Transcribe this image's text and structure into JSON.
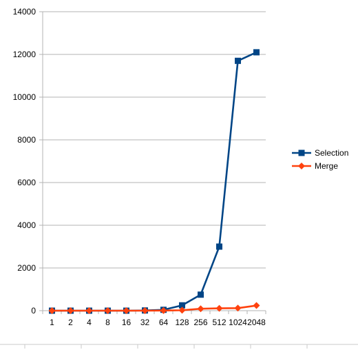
{
  "chart_data": {
    "type": "line",
    "categories": [
      "1",
      "2",
      "4",
      "8",
      "16",
      "32",
      "64",
      "128",
      "256",
      "512",
      "1024",
      "2048"
    ],
    "series": [
      {
        "name": "Selection",
        "color": "#004586",
        "marker": "square",
        "values": [
          0,
          0,
          0,
          0,
          0,
          10,
          40,
          250,
          750,
          3000,
          11700,
          12100
        ]
      },
      {
        "name": "Merge",
        "color": "#ff420e",
        "marker": "diamond",
        "values": [
          0,
          0,
          0,
          0,
          0,
          0,
          5,
          20,
          90,
          110,
          120,
          240
        ]
      }
    ],
    "ylim": [
      0,
      14000
    ],
    "yticks": [
      0,
      2000,
      4000,
      6000,
      8000,
      10000,
      12000,
      14000
    ],
    "grid": true,
    "legend": "right"
  }
}
